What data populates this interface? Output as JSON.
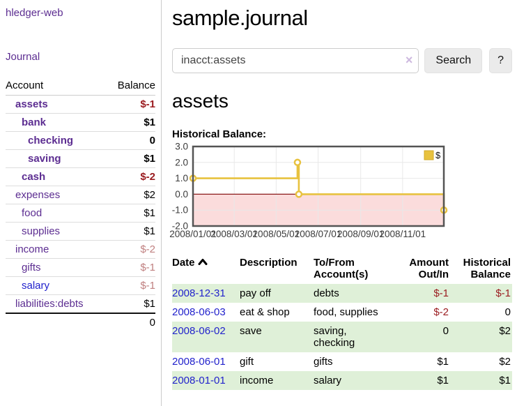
{
  "brand": "hledger-web",
  "nav": {
    "journal": "Journal"
  },
  "sidebar": {
    "header": {
      "account": "Account",
      "balance": "Balance"
    },
    "accounts": [
      {
        "name": "assets",
        "level": 1,
        "bold": true,
        "link_style": "purple",
        "balance": "$-1",
        "value_style": "negative"
      },
      {
        "name": "bank",
        "level": 2,
        "bold": true,
        "link_style": "purple",
        "balance": "$1",
        "value_style": "normal"
      },
      {
        "name": "checking",
        "level": 3,
        "bold": true,
        "link_style": "purple",
        "balance": "0",
        "value_style": "normal"
      },
      {
        "name": "saving",
        "level": 3,
        "bold": true,
        "link_style": "purple",
        "balance": "$1",
        "value_style": "normal"
      },
      {
        "name": "cash",
        "level": 2,
        "bold": true,
        "link_style": "purple",
        "balance": "$-2",
        "value_style": "negative"
      },
      {
        "name": "expenses",
        "level": 1,
        "bold": false,
        "link_style": "purple",
        "balance": "$2",
        "value_style": "normal"
      },
      {
        "name": "food",
        "level": 2,
        "bold": false,
        "link_style": "purple",
        "balance": "$1",
        "value_style": "normal"
      },
      {
        "name": "supplies",
        "level": 2,
        "bold": false,
        "link_style": "purple",
        "balance": "$1",
        "value_style": "normal"
      },
      {
        "name": "income",
        "level": 1,
        "bold": false,
        "link_style": "purple",
        "balance": "$-2",
        "value_style": "negative-muted"
      },
      {
        "name": "gifts",
        "level": 2,
        "bold": false,
        "link_style": "purple",
        "balance": "$-1",
        "value_style": "negative-muted"
      },
      {
        "name": "salary",
        "level": 2,
        "bold": false,
        "link_style": "blue",
        "balance": "$-1",
        "value_style": "negative-muted"
      },
      {
        "name": "liabilities:debts",
        "level": 1,
        "bold": false,
        "link_style": "purple",
        "balance": "$1",
        "value_style": "normal"
      }
    ],
    "total": "0"
  },
  "main": {
    "title": "sample.journal",
    "search": {
      "value": "inacct:assets",
      "clear": "×",
      "button": "Search",
      "help": "?"
    },
    "heading": "assets",
    "register": {
      "headers": {
        "date": "Date",
        "description": "Description",
        "accounts": "To/From Account(s)",
        "amount": "Amount Out/In",
        "balance": "Historical Balance"
      },
      "sort": "date-ascending-caret",
      "rows": [
        {
          "date": "2008-12-31",
          "description": "pay off",
          "accounts": "debts",
          "amount": "$-1",
          "balance": "$-1"
        },
        {
          "date": "2008-06-03",
          "description": "eat & shop",
          "accounts": "food, supplies",
          "amount": "$-2",
          "balance": "0"
        },
        {
          "date": "2008-06-02",
          "description": "save",
          "accounts": "saving, checking",
          "amount": "0",
          "balance": "$2"
        },
        {
          "date": "2008-06-01",
          "description": "gift",
          "accounts": "gifts",
          "amount": "$1",
          "balance": "$2"
        },
        {
          "date": "2008-01-01",
          "description": "income",
          "accounts": "salary",
          "amount": "$1",
          "balance": "$1"
        }
      ]
    }
  },
  "chart_data": {
    "type": "line",
    "title": "Historical Balance:",
    "step": true,
    "series": [
      {
        "name": "$",
        "color": "#e8c23f",
        "points": [
          {
            "date": "2008-01-01",
            "value": 1
          },
          {
            "date": "2008-06-01",
            "value": 2
          },
          {
            "date": "2008-06-03",
            "value": 0
          },
          {
            "date": "2008-12-31",
            "value": -1
          }
        ]
      }
    ],
    "x_ticks": [
      "2008/01/01",
      "2008/03/01",
      "2008/05/01",
      "2008/07/01",
      "2008/09/01",
      "2008/11/01"
    ],
    "x_range_days": [
      "2008-01-01",
      "2008-12-31"
    ],
    "y_ticks": [
      3.0,
      2.0,
      1.0,
      0.0,
      -1.0,
      -2.0
    ],
    "ylim": [
      -2,
      3
    ],
    "grid": true,
    "legend": {
      "label": "$",
      "position": "top-right"
    },
    "negative_region_color": "#fbdcdc",
    "zero_line_color": "#8b1a1a",
    "border_color": "#545454",
    "grid_color": "#e8e8e8"
  },
  "colors": {
    "link_purple": "#5c2d91",
    "link_blue": "#2222cc",
    "negative": "#9a1b1f",
    "negative_muted": "#c08080",
    "row_highlight": "#dff0d8"
  }
}
